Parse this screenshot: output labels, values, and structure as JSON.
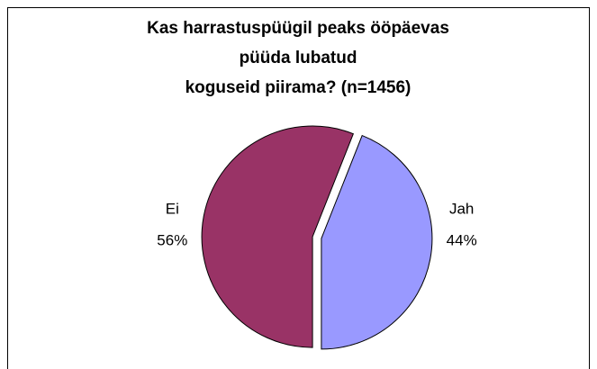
{
  "chart_data": {
    "type": "pie",
    "title": [
      "Kas  harrastuspüügil peaks ööpäevas",
      "püüda lubatud",
      "koguseid piirama? (n=1456)"
    ],
    "categories": [
      "Jah",
      "Ei"
    ],
    "values": [
      44,
      56
    ],
    "value_labels": [
      "44%",
      "56%"
    ],
    "colors": [
      "#9999ff",
      "#993366"
    ]
  }
}
